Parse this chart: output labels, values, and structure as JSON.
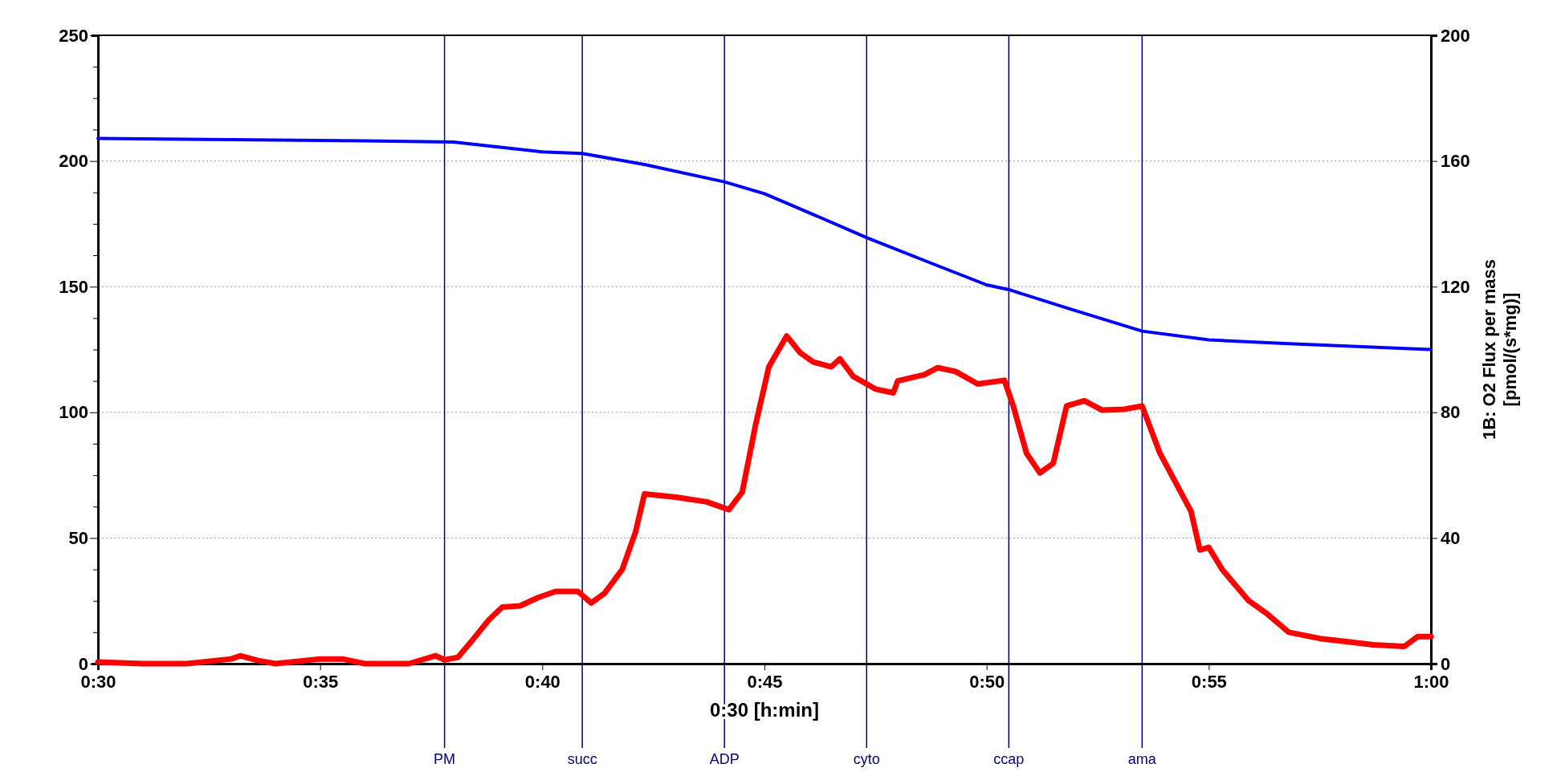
{
  "chart_data": {
    "type": "line",
    "xlabel": "0:30 [h:min]",
    "y2label": "1B: O2 Flux per mass [pmol/(s*mg)]",
    "xlim": [
      30,
      60
    ],
    "xticks": [
      {
        "value": 30,
        "label": "0:30"
      },
      {
        "value": 35,
        "label": "0:35"
      },
      {
        "value": 40,
        "label": "0:40"
      },
      {
        "value": 45,
        "label": "0:45"
      },
      {
        "value": 50,
        "label": "0:50"
      },
      {
        "value": 55,
        "label": "0:55"
      },
      {
        "value": 60,
        "label": "1:00"
      }
    ],
    "ylim": [
      0,
      250
    ],
    "yticks": [
      0,
      {
        "value": 12.5,
        "label": null
      },
      {
        "value": 25,
        "label": null
      },
      {
        "value": 37.5,
        "label": null
      },
      50,
      {
        "value": 62.5,
        "label": null
      },
      {
        "value": 75,
        "label": null
      },
      {
        "value": 87.5,
        "label": null
      },
      100,
      {
        "value": 112.5,
        "label": null
      },
      {
        "value": 125,
        "label": null
      },
      {
        "value": 137.5,
        "label": null
      },
      150,
      {
        "value": 162.5,
        "label": null
      },
      {
        "value": 175,
        "label": null
      },
      {
        "value": 187.5,
        "label": null
      },
      200,
      {
        "value": 212.5,
        "label": null
      },
      {
        "value": 225,
        "label": null
      },
      {
        "value": 237.5,
        "label": null
      },
      250
    ],
    "y2lim": [
      0,
      200
    ],
    "y2ticks": [
      0,
      40,
      80,
      120,
      160,
      200
    ],
    "grid": "y",
    "line_style": "solid",
    "marker": "none",
    "series": [
      {
        "color": "#0000ff",
        "x": [
          30,
          33,
          36,
          38,
          40,
          40.9,
          42.3,
          44.1,
          45,
          46.1,
          47.3,
          48.8,
          50,
          50.5,
          51.9,
          53.5,
          55,
          56.8,
          60
        ],
        "values": [
          209,
          208.5,
          208,
          207.5,
          203.6,
          203,
          198.6,
          191.7,
          187,
          178.7,
          169.5,
          159,
          150.7,
          148.8,
          141,
          132.3,
          128.8,
          127.3,
          125
        ]
      },
      {
        "color": "#ff0000",
        "axis": "y2",
        "x": [
          30,
          31,
          32,
          33,
          33.2,
          33.6,
          34,
          35,
          35.5,
          36,
          37,
          37.6,
          37.8,
          38.1,
          38.4,
          38.8,
          39.1,
          39.5,
          39.9,
          40.3,
          40.8,
          41.1,
          41.4,
          41.8,
          42.1,
          42.3,
          43,
          43.7,
          44.2,
          44.5,
          44.8,
          45.1,
          45.5,
          45.8,
          46.1,
          46.5,
          46.7,
          47,
          47.5,
          47.9,
          48,
          48.6,
          48.9,
          49.3,
          49.8,
          50.4,
          50.6,
          50.9,
          51.2,
          51.5,
          51.8,
          52.2,
          52.6,
          53.1,
          53.5,
          53.9,
          54.6,
          54.8,
          55,
          55.3,
          55.9,
          56.3,
          56.8,
          57.5,
          58.1,
          58.7,
          59.4,
          59.7,
          60
        ],
        "values": [
          0.5,
          0,
          0,
          1.5,
          2.5,
          1,
          0,
          1.5,
          1.5,
          0,
          0,
          2.5,
          1.2,
          2,
          7,
          14,
          18,
          18.4,
          21,
          23,
          23,
          19.3,
          22.4,
          30,
          42,
          54,
          53,
          51.5,
          49,
          54.6,
          76,
          94.5,
          104.3,
          99,
          96,
          94.5,
          97,
          91.4,
          87.4,
          86.2,
          90,
          92,
          94.2,
          93,
          89,
          90.2,
          82,
          66.9,
          60.7,
          63.8,
          82,
          83.7,
          80.7,
          81,
          82,
          67,
          48.5,
          36.2,
          37,
          30,
          20,
          16,
          10,
          8,
          7,
          6,
          5.5,
          8.6,
          8.6
        ]
      }
    ],
    "ref_lines": [
      {
        "axis": "x",
        "value": 37.8,
        "label": "PM",
        "color": "#000080"
      },
      {
        "axis": "x",
        "value": 40.9,
        "label": "succ",
        "color": "#000080"
      },
      {
        "axis": "x",
        "value": 44.1,
        "label": "ADP",
        "color": "#000080"
      },
      {
        "axis": "x",
        "value": 47.3,
        "label": "cyto",
        "color": "#000080"
      },
      {
        "axis": "x",
        "value": 50.5,
        "label": "ccap",
        "color": "#000080"
      },
      {
        "axis": "x",
        "value": 53.5,
        "label": "ama",
        "color": "#000080"
      }
    ]
  }
}
